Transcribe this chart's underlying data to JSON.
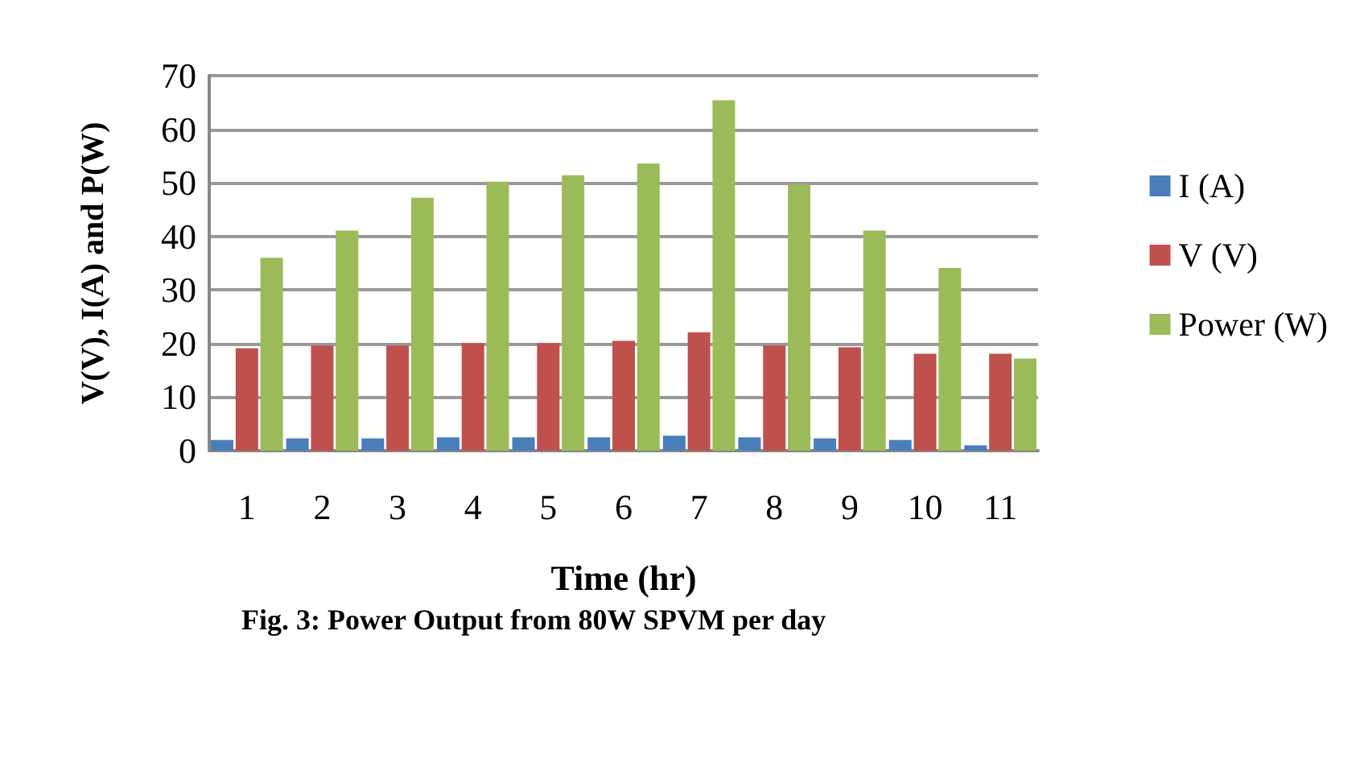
{
  "chart_data": {
    "type": "bar",
    "xlabel": "Time (hr)",
    "ylabel": "V(V), I(A) and P(W)",
    "annotations": [
      "Fig. 3: Power Output from 80W SPVM per day"
    ],
    "categories": [
      "1",
      "2",
      "3",
      "4",
      "5",
      "6",
      "7",
      "8",
      "9",
      "10",
      "11"
    ],
    "series": [
      {
        "name": "I (A)",
        "color": "#4a7ebb",
        "values": [
          2.0,
          2.3,
          2.3,
          2.5,
          2.5,
          2.5,
          2.8,
          2.5,
          2.3,
          2.0,
          1.0
        ]
      },
      {
        "name": "V (V)",
        "color": "#c0504d",
        "values": [
          19.1,
          19.6,
          19.6,
          20.1,
          20.1,
          20.5,
          22.1,
          19.6,
          19.3,
          18.1,
          18.1
        ]
      },
      {
        "name": "Power (W)",
        "color": "#9bbb59",
        "values": [
          36.0,
          41.1,
          47.2,
          50.2,
          51.4,
          53.6,
          65.4,
          49.7,
          41.1,
          34.1,
          17.2
        ]
      }
    ],
    "ylim": [
      0,
      70
    ],
    "yticks": [
      0,
      10,
      20,
      30,
      40,
      50,
      60,
      70
    ],
    "grid": "y",
    "legend": "right"
  }
}
